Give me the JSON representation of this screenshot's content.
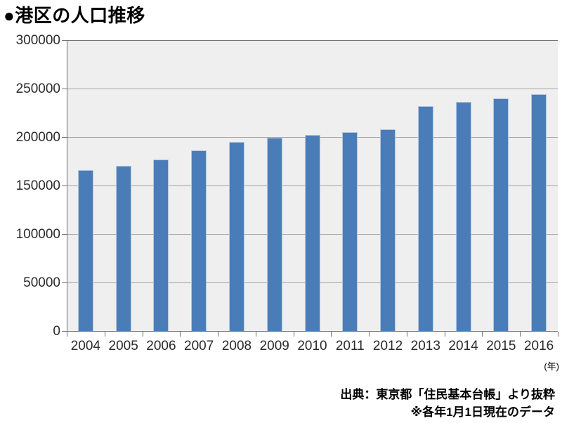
{
  "title": "●港区の人口推移",
  "source": {
    "line1": "出典：東京都「住民基本台帳」より抜粋",
    "line2": "※各年1月1日現在のデータ"
  },
  "x_unit_label": "(年)",
  "colors": {
    "bar_fill": "#4a7db8",
    "bar_border": "#b3c8e2",
    "plot_background": "#f0efef",
    "gridline": "#a4a4a4",
    "axis": "#6f6f6f"
  },
  "chart_data": {
    "type": "bar",
    "title": "●港区の人口推移",
    "categories": [
      "2004",
      "2005",
      "2006",
      "2007",
      "2008",
      "2009",
      "2010",
      "2011",
      "2012",
      "2013",
      "2014",
      "2015",
      "2016"
    ],
    "values": [
      166000,
      170000,
      177000,
      186000,
      195000,
      199000,
      202000,
      205000,
      208000,
      232000,
      236000,
      240000,
      244000
    ],
    "xlabel": "年",
    "ylabel": "",
    "ylim": [
      0,
      300000
    ],
    "yticks": [
      0,
      50000,
      100000,
      150000,
      200000,
      250000,
      300000
    ],
    "ytick_labels": [
      "0",
      "50000",
      "100000",
      "150000",
      "200000",
      "250000",
      "300000"
    ],
    "grid": true,
    "legend": false,
    "annotations": [
      "出典：東京都「住民基本台帳」より抜粋",
      "※各年1月1日現在のデータ"
    ]
  }
}
